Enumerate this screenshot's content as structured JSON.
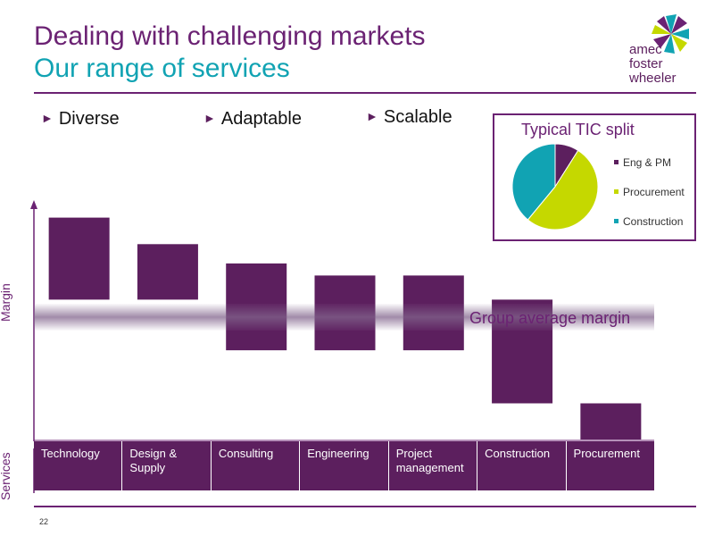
{
  "slide": {
    "title_line1": "Dealing with challenging markets",
    "title_line2": "Our range of services",
    "page_number": "22"
  },
  "logo": {
    "line1": "amec",
    "line2": "foster",
    "line3": "wheeler"
  },
  "bullets": [
    "Diverse",
    "Adaptable",
    "Scalable"
  ],
  "axis": {
    "y_label": "Margin",
    "row_label": "Services"
  },
  "band_label": "Group average margin",
  "colors": {
    "purple": "#5c1f5e",
    "title_purple": "#6b2273",
    "teal": "#11a3b3",
    "lime": "#c5d800"
  },
  "chart_data": [
    {
      "type": "bar",
      "categories": [
        "Technology",
        "Design & Supply",
        "Consulting",
        "Engineering",
        "Project management",
        "Construction",
        "Procurement"
      ],
      "series": [
        {
          "values_high": [
            9.2,
            8.1,
            7.3,
            6.8,
            6.8,
            5.8,
            1.5
          ],
          "values_low": [
            5.8,
            5.8,
            3.7,
            3.7,
            3.7,
            1.5,
            0.0
          ]
        }
      ],
      "reference_line": {
        "label": "Group average margin",
        "value": 4.8
      },
      "xlabel": "Services",
      "ylabel": "Margin",
      "ylim": [
        0,
        10
      ],
      "grid": false
    },
    {
      "type": "pie",
      "title": "Typical TIC split",
      "labels": [
        "Eng & PM",
        "Procurement",
        "Construction"
      ],
      "values": [
        9,
        52,
        39
      ],
      "colors": [
        "#5c1f5e",
        "#c5d800",
        "#11a3b3"
      ],
      "legend": "right"
    }
  ]
}
